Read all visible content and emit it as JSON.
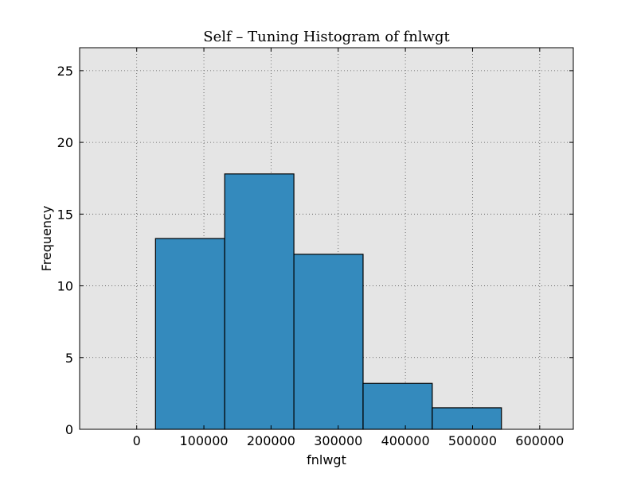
{
  "chart_data": {
    "type": "bar",
    "title": "Self – Tuning Histogram of fnlwgt",
    "xlabel": "fnlwgt",
    "ylabel": "Frequency",
    "xlim": [
      -85000,
      650000
    ],
    "ylim": [
      0,
      26.6
    ],
    "xticks": [
      0,
      100000,
      200000,
      300000,
      400000,
      500000,
      600000
    ],
    "xtick_labels": [
      "0",
      "100000",
      "200000",
      "300000",
      "400000",
      "500000",
      "600000"
    ],
    "yticks": [
      0,
      5,
      10,
      15,
      20,
      25
    ],
    "ytick_labels": [
      "0",
      "5",
      "10",
      "15",
      "20",
      "25"
    ],
    "grid": true,
    "bins": [
      {
        "x0": 28000,
        "x1": 131000,
        "value": 13.3
      },
      {
        "x0": 131000,
        "x1": 234000,
        "value": 17.8
      },
      {
        "x0": 234000,
        "x1": 337000,
        "value": 12.2
      },
      {
        "x0": 337000,
        "x1": 440000,
        "value": 3.2
      },
      {
        "x0": 440000,
        "x1": 543000,
        "value": 1.5
      }
    ],
    "colors": {
      "bar_fill": "#348ABD",
      "bar_edge": "#000000",
      "plot_bg": "#E5E5E5",
      "grid": "#555555"
    }
  }
}
